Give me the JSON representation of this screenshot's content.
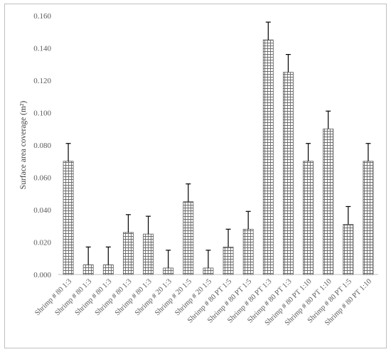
{
  "chart_data": {
    "type": "bar",
    "title": "",
    "xlabel": "",
    "ylabel": "Surface area coverage (m²)",
    "ylim": [
      0,
      0.16
    ],
    "yticks": [
      "0.000",
      "0.020",
      "0.040",
      "0.060",
      "0.080",
      "0.100",
      "0.120",
      "0.140",
      "0.160"
    ],
    "grid": false,
    "legend": "none",
    "bar_fill": "crosshatch",
    "categories": [
      "Shrimp # 80 1:3",
      "Shrimp # 80 1:3",
      "Shrimp # 80 1:3",
      "Shrimp # 80 1:3",
      "Shrimp # 80 1:3",
      "Shrimp # 20 1:3",
      "Shrimp # 20 1:5",
      "Shrimp # 20 1:5",
      "Shrimp # 80 PT 1:5",
      "Shrimp # 80 PT 1:5",
      "Shrimp # 80 PT 1:3",
      "Shrimp # 80 PT 1:3",
      "Shrimp # 80 PT 1:10",
      "Shrimp # 80 PT 1:10",
      "Shrimp # 80 PT 1:5",
      "Shrimp # 80 PT 1:10"
    ],
    "values": [
      0.07,
      0.006,
      0.006,
      0.026,
      0.025,
      0.004,
      0.045,
      0.004,
      0.017,
      0.028,
      0.145,
      0.125,
      0.07,
      0.09,
      0.031,
      0.07
    ],
    "error_upper": [
      0.081,
      0.017,
      0.017,
      0.037,
      0.036,
      0.015,
      0.056,
      0.015,
      0.028,
      0.039,
      0.156,
      0.136,
      0.081,
      0.101,
      0.042,
      0.081
    ]
  }
}
